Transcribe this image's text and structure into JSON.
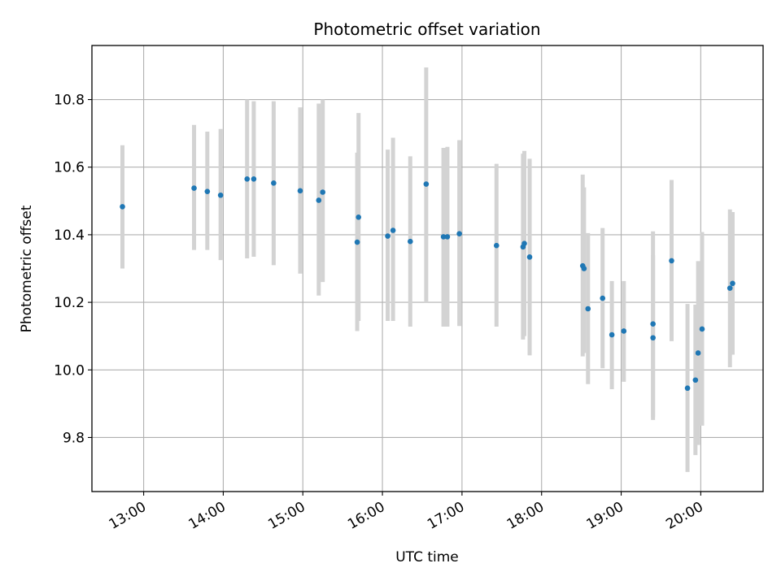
{
  "chart_data": {
    "type": "scatter",
    "title": "Photometric offset variation",
    "xlabel": "UTC time",
    "ylabel": "Photometric offset",
    "x_ticks": [
      "13:00",
      "14:00",
      "15:00",
      "16:00",
      "17:00",
      "18:00",
      "19:00",
      "20:00"
    ],
    "y_ticks": [
      "9.8",
      "10.0",
      "10.2",
      "10.4",
      "10.6",
      "10.8"
    ],
    "xlim": [
      "12:21",
      "20:47"
    ],
    "ylim": [
      9.64,
      10.96
    ],
    "grid": true,
    "marker_color": "#1f77b4",
    "errorbar_color": "#d3d3d3",
    "points": [
      {
        "t": "12:44",
        "y": 10.483,
        "lo": 10.3,
        "hi": 10.665
      },
      {
        "t": "13:38",
        "y": 10.538,
        "lo": 10.355,
        "hi": 10.725
      },
      {
        "t": "13:48",
        "y": 10.528,
        "lo": 10.355,
        "hi": 10.705
      },
      {
        "t": "13:58",
        "y": 10.517,
        "lo": 10.325,
        "hi": 10.713
      },
      {
        "t": "14:18",
        "y": 10.565,
        "lo": 10.33,
        "hi": 10.8
      },
      {
        "t": "14:23",
        "y": 10.565,
        "lo": 10.335,
        "hi": 10.795
      },
      {
        "t": "14:38",
        "y": 10.553,
        "lo": 10.31,
        "hi": 10.795
      },
      {
        "t": "14:58",
        "y": 10.53,
        "lo": 10.285,
        "hi": 10.777
      },
      {
        "t": "15:12",
        "y": 10.502,
        "lo": 10.22,
        "hi": 10.788
      },
      {
        "t": "15:15",
        "y": 10.526,
        "lo": 10.26,
        "hi": 10.8
      },
      {
        "t": "15:41",
        "y": 10.378,
        "lo": 10.115,
        "hi": 10.643
      },
      {
        "t": "15:42",
        "y": 10.452,
        "lo": 10.145,
        "hi": 10.76
      },
      {
        "t": "16:04",
        "y": 10.396,
        "lo": 10.145,
        "hi": 10.652
      },
      {
        "t": "16:08",
        "y": 10.413,
        "lo": 10.145,
        "hi": 10.687
      },
      {
        "t": "16:21",
        "y": 10.38,
        "lo": 10.128,
        "hi": 10.632
      },
      {
        "t": "16:33",
        "y": 10.55,
        "lo": 10.2,
        "hi": 10.895
      },
      {
        "t": "16:46",
        "y": 10.394,
        "lo": 10.128,
        "hi": 10.657
      },
      {
        "t": "16:49",
        "y": 10.394,
        "lo": 10.128,
        "hi": 10.66
      },
      {
        "t": "16:58",
        "y": 10.403,
        "lo": 10.13,
        "hi": 10.68
      },
      {
        "t": "17:26",
        "y": 10.368,
        "lo": 10.128,
        "hi": 10.61
      },
      {
        "t": "17:46",
        "y": 10.364,
        "lo": 10.09,
        "hi": 10.64
      },
      {
        "t": "17:47",
        "y": 10.374,
        "lo": 10.1,
        "hi": 10.648
      },
      {
        "t": "17:51",
        "y": 10.334,
        "lo": 10.043,
        "hi": 10.625
      },
      {
        "t": "18:31",
        "y": 10.308,
        "lo": 10.04,
        "hi": 10.578
      },
      {
        "t": "18:32",
        "y": 10.3,
        "lo": 10.05,
        "hi": 10.54
      },
      {
        "t": "18:35",
        "y": 10.181,
        "lo": 9.958,
        "hi": 10.405
      },
      {
        "t": "18:46",
        "y": 10.212,
        "lo": 10.005,
        "hi": 10.42
      },
      {
        "t": "18:53",
        "y": 10.104,
        "lo": 9.943,
        "hi": 10.263
      },
      {
        "t": "19:02",
        "y": 10.115,
        "lo": 9.965,
        "hi": 10.263
      },
      {
        "t": "19:24",
        "y": 10.136,
        "lo": 9.86,
        "hi": 10.41
      },
      {
        "t": "19:24",
        "y": 10.095,
        "lo": 9.852,
        "hi": 10.34
      },
      {
        "t": "19:38",
        "y": 10.323,
        "lo": 10.085,
        "hi": 10.562
      },
      {
        "t": "19:50",
        "y": 9.946,
        "lo": 9.698,
        "hi": 10.195
      },
      {
        "t": "19:56",
        "y": 9.97,
        "lo": 9.748,
        "hi": 10.193
      },
      {
        "t": "19:58",
        "y": 10.05,
        "lo": 9.778,
        "hi": 10.322
      },
      {
        "t": "20:01",
        "y": 10.121,
        "lo": 9.835,
        "hi": 10.408
      },
      {
        "t": "20:22",
        "y": 10.242,
        "lo": 10.008,
        "hi": 10.475
      },
      {
        "t": "20:24",
        "y": 10.256,
        "lo": 10.045,
        "hi": 10.467
      }
    ]
  }
}
